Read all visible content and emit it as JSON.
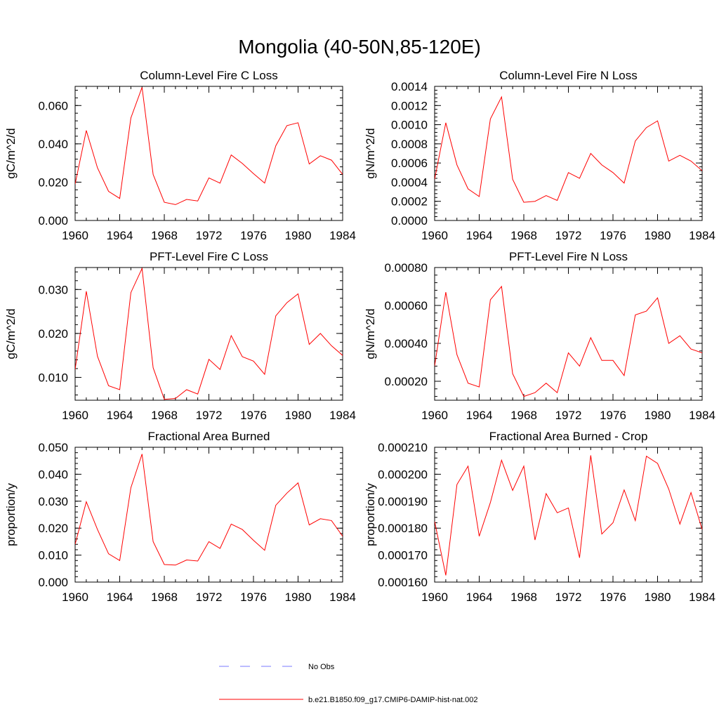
{
  "figure": {
    "title": "Mongolia (40-50N,85-120E)"
  },
  "legend": {
    "entries": [
      {
        "label": "No Obs",
        "color": "#7a7aff",
        "style": "dashed"
      },
      {
        "label": "b.e21.B1850.f09_g17.CMIP6-DAMIP-hist-nat.002",
        "color": "#ff0000",
        "style": "solid"
      }
    ]
  },
  "chart_data": [
    {
      "type": "line",
      "title": "Column-Level Fire C Loss",
      "ylabel": "gC/m^2/d",
      "xlim": [
        1960,
        1984
      ],
      "ylim": [
        0,
        0.07
      ],
      "xticks": [
        1960,
        1964,
        1968,
        1972,
        1976,
        1980,
        1984
      ],
      "yticks": [
        0,
        0.02,
        0.04,
        0.06
      ],
      "yticklabels": [
        "0.000",
        "0.020",
        "0.040",
        "0.060"
      ],
      "yminor": 0.004,
      "x": [
        1960,
        1961,
        1962,
        1963,
        1964,
        1965,
        1966,
        1967,
        1968,
        1969,
        1970,
        1971,
        1972,
        1973,
        1974,
        1975,
        1976,
        1977,
        1978,
        1979,
        1980,
        1981,
        1982,
        1983,
        1984
      ],
      "series": [
        {
          "color": "#ff0000",
          "values": [
            0.019,
            0.047,
            0.0275,
            0.0152,
            0.0115,
            0.0535,
            0.0695,
            0.024,
            0.0095,
            0.0083,
            0.011,
            0.0102,
            0.0222,
            0.0195,
            0.0342,
            0.0298,
            0.0245,
            0.0195,
            0.039,
            0.0495,
            0.051,
            0.0295,
            0.0338,
            0.0315,
            0.024
          ]
        }
      ]
    },
    {
      "type": "line",
      "title": "Column-Level Fire N Loss",
      "ylabel": "gN/m^2/d",
      "xlim": [
        1960,
        1984
      ],
      "ylim": [
        0,
        0.0014
      ],
      "xticks": [
        1960,
        1964,
        1968,
        1972,
        1976,
        1980,
        1984
      ],
      "yticks": [
        0,
        0.0002,
        0.0004,
        0.0006,
        0.0008,
        0.001,
        0.0012,
        0.0014
      ],
      "yticklabels": [
        "0.0000",
        "0.0002",
        "0.0004",
        "0.0006",
        "0.0008",
        "0.0010",
        "0.0012",
        "0.0014"
      ],
      "yminor": 4e-05,
      "x": [
        1960,
        1961,
        1962,
        1963,
        1964,
        1965,
        1966,
        1967,
        1968,
        1969,
        1970,
        1971,
        1972,
        1973,
        1974,
        1975,
        1976,
        1977,
        1978,
        1979,
        1980,
        1981,
        1982,
        1983,
        1984
      ],
      "series": [
        {
          "color": "#ff0000",
          "values": [
            0.00043,
            0.00102,
            0.00058,
            0.00033,
            0.00025,
            0.00106,
            0.00129,
            0.00043,
            0.00019,
            0.0002,
            0.00026,
            0.00021,
            0.0005,
            0.00044,
            0.0007,
            0.00058,
            0.0005,
            0.00039,
            0.00083,
            0.00097,
            0.00104,
            0.00062,
            0.00068,
            0.00062,
            0.00052
          ]
        }
      ]
    },
    {
      "type": "line",
      "title": "PFT-Level Fire C Loss",
      "ylabel": "gC/m^2/d",
      "xlim": [
        1960,
        1984
      ],
      "ylim": [
        0.0048,
        0.035
      ],
      "xticks": [
        1960,
        1964,
        1968,
        1972,
        1976,
        1980,
        1984
      ],
      "yticks": [
        0.01,
        0.02,
        0.03
      ],
      "yticklabels": [
        "0.010",
        "0.020",
        "0.030"
      ],
      "yminor": 0.002,
      "x": [
        1960,
        1961,
        1962,
        1963,
        1964,
        1965,
        1966,
        1967,
        1968,
        1969,
        1970,
        1971,
        1972,
        1973,
        1974,
        1975,
        1976,
        1977,
        1978,
        1979,
        1980,
        1981,
        1982,
        1983,
        1984
      ],
      "series": [
        {
          "color": "#ff0000",
          "values": [
            0.0118,
            0.0296,
            0.0148,
            0.0081,
            0.0072,
            0.0293,
            0.0348,
            0.0122,
            0.005,
            0.0052,
            0.0072,
            0.0062,
            0.0141,
            0.0118,
            0.0195,
            0.0147,
            0.0137,
            0.0107,
            0.024,
            0.027,
            0.029,
            0.0175,
            0.02,
            0.0172,
            0.015
          ]
        }
      ]
    },
    {
      "type": "line",
      "title": "PFT-Level Fire N Loss",
      "ylabel": "gN/m^2/d",
      "xlim": [
        1960,
        1984
      ],
      "ylim": [
        0.0001,
        0.0008
      ],
      "xticks": [
        1960,
        1964,
        1968,
        1972,
        1976,
        1980,
        1984
      ],
      "yticks": [
        0.0002,
        0.0004,
        0.0006,
        0.0008
      ],
      "yticklabels": [
        "0.00020",
        "0.00040",
        "0.00060",
        "0.00080"
      ],
      "yminor": 4e-05,
      "x": [
        1960,
        1961,
        1962,
        1963,
        1964,
        1965,
        1966,
        1967,
        1968,
        1969,
        1970,
        1971,
        1972,
        1973,
        1974,
        1975,
        1976,
        1977,
        1978,
        1979,
        1980,
        1981,
        1982,
        1983,
        1984
      ],
      "series": [
        {
          "color": "#ff0000",
          "values": [
            0.00028,
            0.00067,
            0.00034,
            0.00019,
            0.00017,
            0.00063,
            0.0007,
            0.00024,
            0.00012,
            0.00014,
            0.00019,
            0.00014,
            0.00035,
            0.00028,
            0.00043,
            0.00031,
            0.00031,
            0.00023,
            0.00055,
            0.00057,
            0.00064,
            0.0004,
            0.00044,
            0.00037,
            0.00035
          ]
        }
      ]
    },
    {
      "type": "line",
      "title": "Fractional Area Burned",
      "ylabel": "proportion/y",
      "xlim": [
        1960,
        1984
      ],
      "ylim": [
        0,
        0.05
      ],
      "xticks": [
        1960,
        1964,
        1968,
        1972,
        1976,
        1980,
        1984
      ],
      "yticks": [
        0,
        0.01,
        0.02,
        0.03,
        0.04,
        0.05
      ],
      "yticklabels": [
        "0.000",
        "0.010",
        "0.020",
        "0.030",
        "0.040",
        "0.050"
      ],
      "yminor": 0.002,
      "x": [
        1960,
        1961,
        1962,
        1963,
        1964,
        1965,
        1966,
        1967,
        1968,
        1969,
        1970,
        1971,
        1972,
        1973,
        1974,
        1975,
        1976,
        1977,
        1978,
        1979,
        1980,
        1981,
        1982,
        1983,
        1984
      ],
      "series": [
        {
          "color": "#ff0000",
          "values": [
            0.014,
            0.0298,
            0.0195,
            0.0105,
            0.008,
            0.035,
            0.0475,
            0.015,
            0.0065,
            0.0063,
            0.0082,
            0.0078,
            0.015,
            0.0125,
            0.0215,
            0.0195,
            0.0155,
            0.0118,
            0.0285,
            0.033,
            0.0368,
            0.0212,
            0.0235,
            0.0228,
            0.017
          ]
        }
      ]
    },
    {
      "type": "line",
      "title": "Fractional Area Burned - Crop",
      "ylabel": "proportion/y",
      "xlim": [
        1960,
        1984
      ],
      "ylim": [
        0.00016,
        0.00021
      ],
      "xticks": [
        1960,
        1964,
        1968,
        1972,
        1976,
        1980,
        1984
      ],
      "yticks": [
        0.00016,
        0.00017,
        0.00018,
        0.00019,
        0.0002,
        0.00021
      ],
      "yticklabels": [
        "0.000160",
        "0.000170",
        "0.000180",
        "0.000190",
        "0.000200",
        "0.000210"
      ],
      "yminor": 2e-06,
      "x": [
        1960,
        1961,
        1962,
        1963,
        1964,
        1965,
        1966,
        1967,
        1968,
        1969,
        1970,
        1971,
        1972,
        1973,
        1974,
        1975,
        1976,
        1977,
        1978,
        1979,
        1980,
        1981,
        1982,
        1983,
        1984
      ],
      "series": [
        {
          "color": "#ff0000",
          "values": [
            0.0001825,
            0.0001625,
            0.0001962,
            0.000203,
            0.000177,
            0.0001895,
            0.0002052,
            0.000194,
            0.000203,
            0.0001756,
            0.0001928,
            0.0001857,
            0.0001875,
            0.000169,
            0.000207,
            0.0001778,
            0.000182,
            0.0001942,
            0.0001828,
            0.0002067,
            0.000204,
            0.0001945,
            0.0001815,
            0.0001932,
            0.0001795
          ]
        }
      ]
    }
  ]
}
